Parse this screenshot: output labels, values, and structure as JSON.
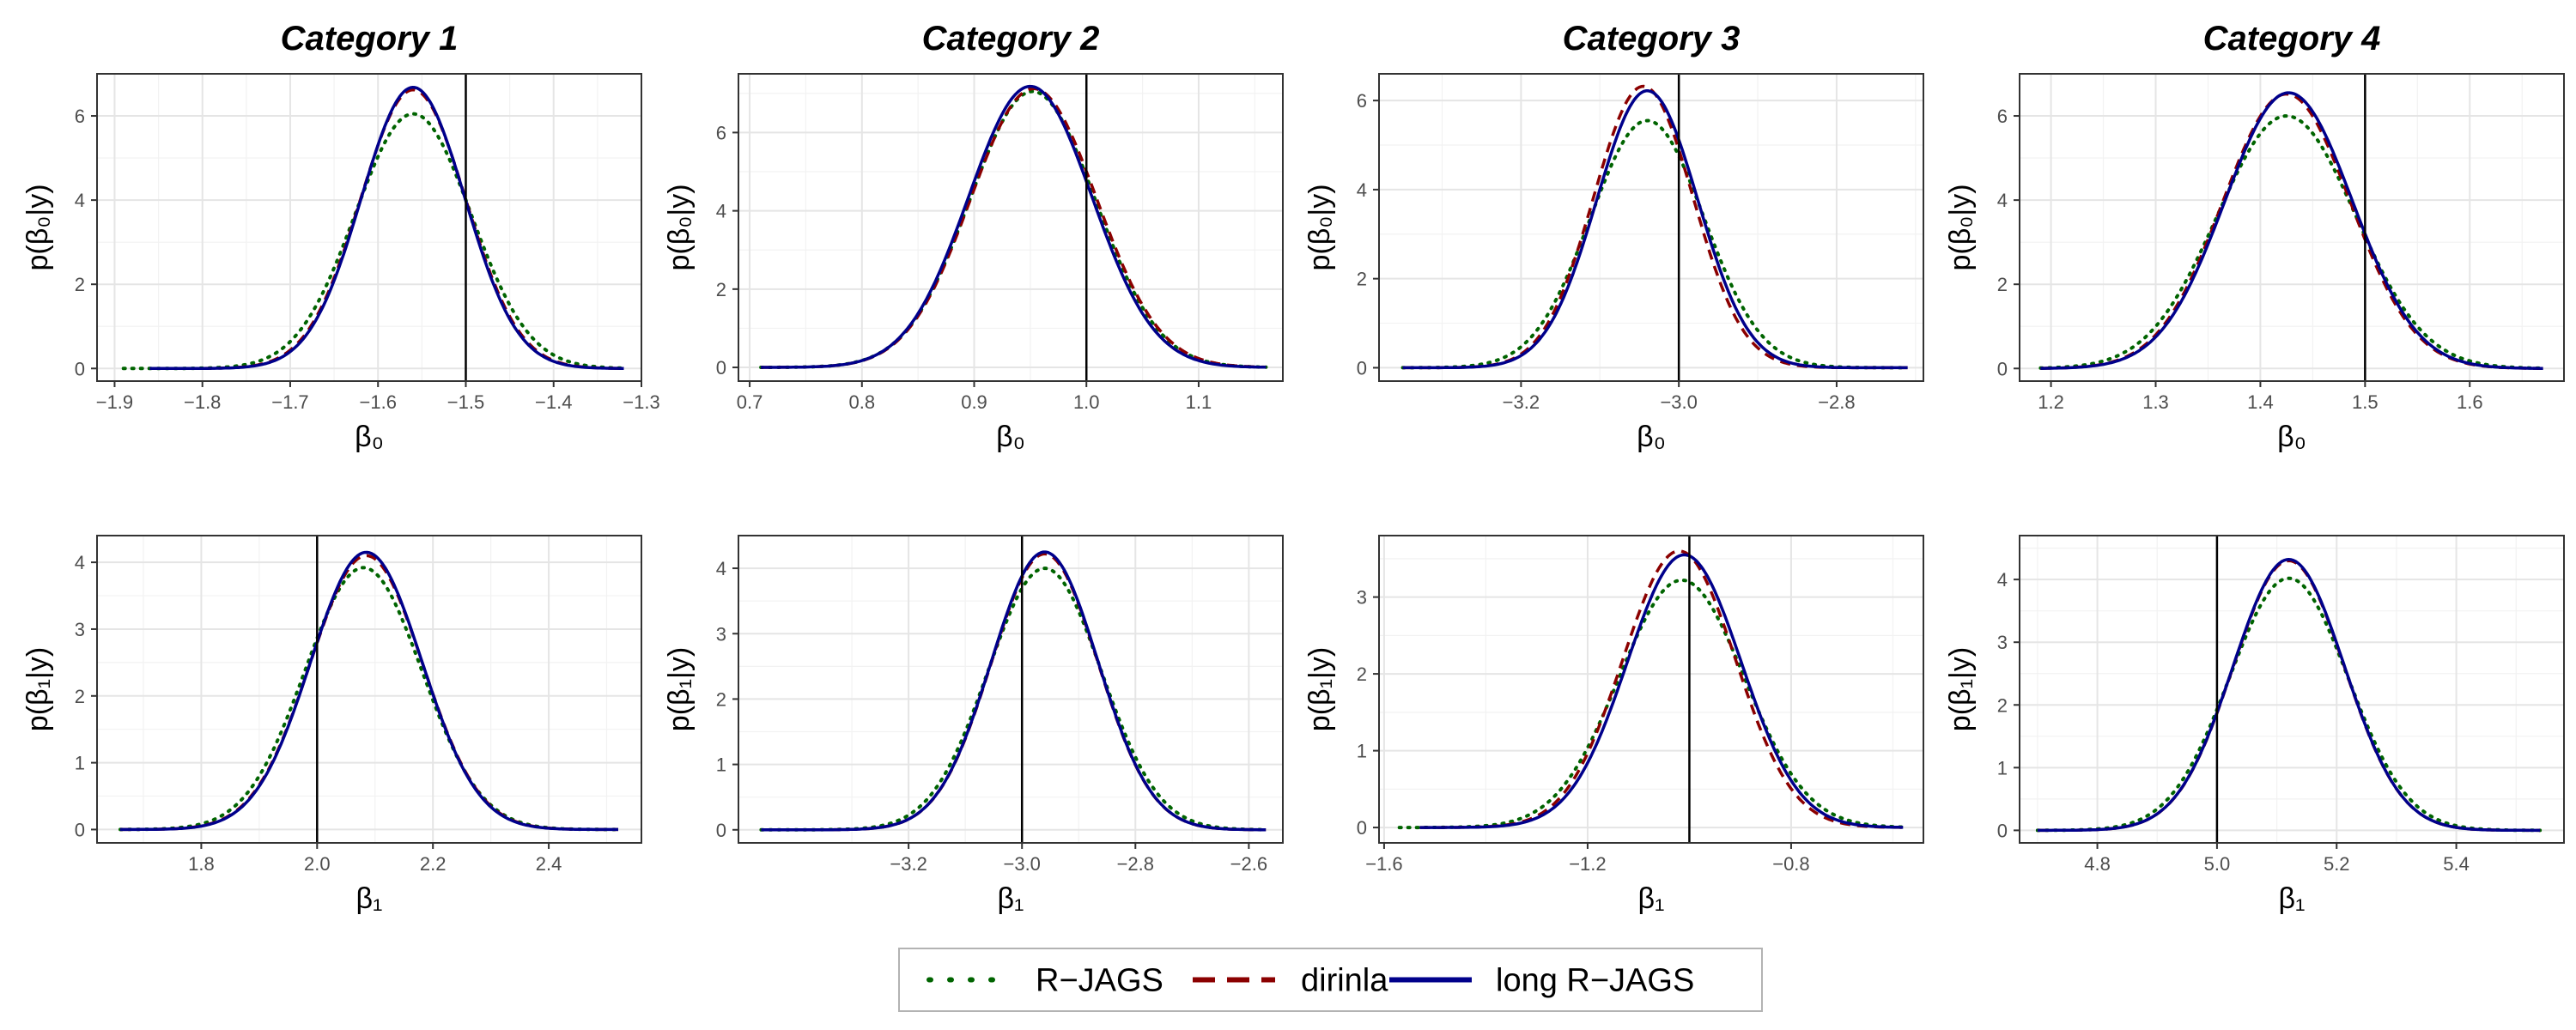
{
  "chart_data": {
    "type": "line",
    "legend": {
      "position": "bottom",
      "entries": [
        {
          "label": "R−JAGS",
          "color": "#006400",
          "style": "dotted"
        },
        {
          "label": "dirinla",
          "color": "#8b0000",
          "style": "dashed"
        },
        {
          "label": "long R−JAGS",
          "color": "#00008b",
          "style": "solid"
        }
      ]
    },
    "column_titles": [
      "Category 1",
      "Category 2",
      "Category 3",
      "Category 4"
    ],
    "row_ylabels": [
      "p(β₀|y)",
      "p(β₁|y)"
    ],
    "row_xlabels": [
      "β₀",
      "β₁"
    ],
    "grid": true,
    "panels": [
      {
        "row": 0,
        "col": 0,
        "xlim": [
          -1.92,
          -1.3
        ],
        "ylim": [
          -0.3,
          7.0
        ],
        "xticks": [
          -1.9,
          -1.8,
          -1.7,
          -1.6,
          -1.5,
          -1.4,
          -1.3
        ],
        "yticks": [
          0,
          2,
          4,
          6
        ],
        "true_value": -1.5,
        "series": [
          {
            "name": "R−JAGS",
            "mean": -1.56,
            "sd": 0.066,
            "peak": 6.05,
            "range": [
              -1.89,
              -1.32
            ]
          },
          {
            "name": "dirinla",
            "mean": -1.56,
            "sd": 0.06,
            "peak": 6.62,
            "range": [
              -1.86,
              -1.32
            ]
          },
          {
            "name": "long R−JAGS",
            "mean": -1.56,
            "sd": 0.059,
            "peak": 6.68,
            "range": [
              -1.86,
              -1.32
            ]
          }
        ]
      },
      {
        "row": 0,
        "col": 1,
        "xlim": [
          0.69,
          1.175
        ],
        "ylim": [
          -0.35,
          7.5
        ],
        "xticks": [
          0.7,
          0.8,
          0.9,
          1.0,
          1.1
        ],
        "yticks": [
          0,
          2,
          4,
          6
        ],
        "true_value": 1.0,
        "series": [
          {
            "name": "R−JAGS",
            "mean": 0.952,
            "sd": 0.056,
            "peak": 7.05,
            "range": [
              0.71,
              1.16
            ]
          },
          {
            "name": "dirinla",
            "mean": 0.953,
            "sd": 0.056,
            "peak": 7.12,
            "range": [
              0.71,
              1.16
            ]
          },
          {
            "name": "long R−JAGS",
            "mean": 0.95,
            "sd": 0.055,
            "peak": 7.18,
            "range": [
              0.71,
              1.16
            ]
          }
        ]
      },
      {
        "row": 0,
        "col": 2,
        "xlim": [
          -3.38,
          -2.69
        ],
        "ylim": [
          -0.3,
          6.6
        ],
        "xticks": [
          -3.2,
          -3.0,
          -2.8
        ],
        "yticks": [
          0,
          2,
          4,
          6
        ],
        "true_value": -3.0,
        "series": [
          {
            "name": "R−JAGS",
            "mean": -3.04,
            "sd": 0.072,
            "peak": 5.55,
            "range": [
              -3.35,
              -2.71
            ]
          },
          {
            "name": "dirinla",
            "mean": -3.045,
            "sd": 0.063,
            "peak": 6.32,
            "range": [
              -3.35,
              -2.71
            ]
          },
          {
            "name": "long R−JAGS",
            "mean": -3.04,
            "sd": 0.064,
            "peak": 6.22,
            "range": [
              -3.35,
              -2.71
            ]
          }
        ]
      },
      {
        "row": 0,
        "col": 3,
        "xlim": [
          1.17,
          1.69
        ],
        "ylim": [
          -0.3,
          7.0
        ],
        "xticks": [
          1.2,
          1.3,
          1.4,
          1.5,
          1.6
        ],
        "yticks": [
          0,
          2,
          4,
          6
        ],
        "true_value": 1.5,
        "series": [
          {
            "name": "R−JAGS",
            "mean": 1.425,
            "sd": 0.066,
            "peak": 6.0,
            "range": [
              1.19,
              1.67
            ]
          },
          {
            "name": "dirinla",
            "mean": 1.425,
            "sd": 0.061,
            "peak": 6.52,
            "range": [
              1.19,
              1.67
            ]
          },
          {
            "name": "long R−JAGS",
            "mean": 1.427,
            "sd": 0.061,
            "peak": 6.55,
            "range": [
              1.19,
              1.67
            ]
          }
        ]
      },
      {
        "row": 1,
        "col": 0,
        "xlim": [
          1.62,
          2.56
        ],
        "ylim": [
          -0.2,
          4.4
        ],
        "xticks": [
          1.8,
          2.0,
          2.2,
          2.4
        ],
        "yticks": [
          0,
          1,
          2,
          3,
          4
        ],
        "true_value": 2.0,
        "series": [
          {
            "name": "R−JAGS",
            "mean": 2.08,
            "sd": 0.101,
            "peak": 3.92,
            "range": [
              1.66,
              2.52
            ]
          },
          {
            "name": "dirinla",
            "mean": 2.085,
            "sd": 0.097,
            "peak": 4.1,
            "range": [
              1.66,
              2.52
            ]
          },
          {
            "name": "long R−JAGS",
            "mean": 2.085,
            "sd": 0.096,
            "peak": 4.15,
            "range": [
              1.66,
              2.52
            ]
          }
        ]
      },
      {
        "row": 1,
        "col": 1,
        "xlim": [
          -3.5,
          -2.54
        ],
        "ylim": [
          -0.2,
          4.5
        ],
        "xticks": [
          -3.2,
          -3.0,
          -2.8,
          -2.6
        ],
        "yticks": [
          0,
          1,
          2,
          3,
          4
        ],
        "true_value": -3.0,
        "series": [
          {
            "name": "R−JAGS",
            "mean": -2.96,
            "sd": 0.1,
            "peak": 4.0,
            "range": [
              -3.46,
              -2.57
            ]
          },
          {
            "name": "dirinla",
            "mean": -2.96,
            "sd": 0.094,
            "peak": 4.22,
            "range": [
              -3.46,
              -2.57
            ]
          },
          {
            "name": "long R−JAGS",
            "mean": -2.96,
            "sd": 0.094,
            "peak": 4.25,
            "range": [
              -3.46,
              -2.57
            ]
          }
        ]
      },
      {
        "row": 1,
        "col": 2,
        "xlim": [
          -1.61,
          -0.54
        ],
        "ylim": [
          -0.2,
          3.8
        ],
        "xticks": [
          -1.6,
          -1.2,
          -0.8
        ],
        "yticks": [
          0,
          1,
          2,
          3
        ],
        "true_value": -1.0,
        "series": [
          {
            "name": "R−JAGS",
            "mean": -1.015,
            "sd": 0.123,
            "peak": 3.22,
            "range": [
              -1.57,
              -0.58
            ]
          },
          {
            "name": "dirinla",
            "mean": -1.02,
            "sd": 0.111,
            "peak": 3.6,
            "range": [
              -1.53,
              -0.58
            ]
          },
          {
            "name": "long R−JAGS",
            "mean": -1.01,
            "sd": 0.112,
            "peak": 3.55,
            "range": [
              -1.53,
              -0.58
            ]
          }
        ]
      },
      {
        "row": 1,
        "col": 3,
        "xlim": [
          4.67,
          5.58
        ],
        "ylim": [
          -0.2,
          4.7
        ],
        "xticks": [
          4.8,
          5.0,
          5.2,
          5.4
        ],
        "yticks": [
          0,
          1,
          2,
          3,
          4
        ],
        "true_value": 5.0,
        "series": [
          {
            "name": "R−JAGS",
            "mean": 5.12,
            "sd": 0.099,
            "peak": 4.02,
            "range": [
              4.7,
              5.54
            ]
          },
          {
            "name": "dirinla",
            "mean": 5.12,
            "sd": 0.093,
            "peak": 4.3,
            "range": [
              4.7,
              5.54
            ]
          },
          {
            "name": "long R−JAGS",
            "mean": 5.12,
            "sd": 0.093,
            "peak": 4.32,
            "range": [
              4.7,
              5.54
            ]
          }
        ]
      }
    ]
  }
}
